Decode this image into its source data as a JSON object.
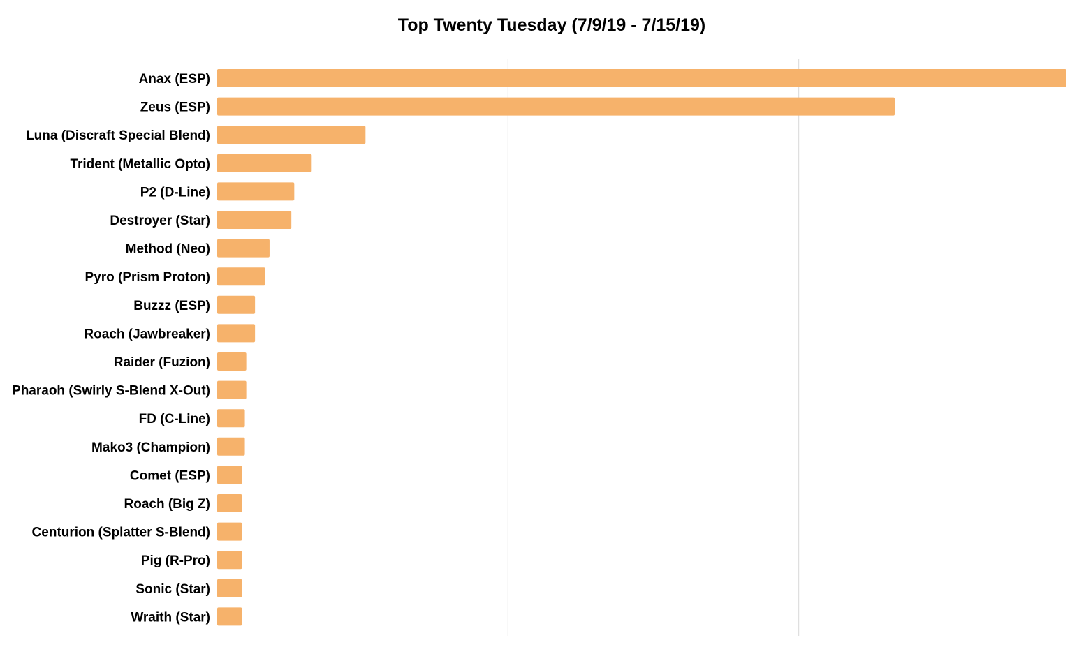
{
  "chart_data": {
    "type": "bar",
    "orientation": "horizontal",
    "title": "Top Twenty Tuesday (7/9/19 - 7/15/19)",
    "xlabel": "",
    "ylabel": "",
    "categories": [
      "Anax (ESP)",
      "Zeus (ESP)",
      "Luna (Discraft Special Blend)",
      "Trident (Metallic Opto)",
      "P2 (D-Line)",
      "Destroyer (Star)",
      "Method (Neo)",
      "Pyro (Prism Proton)",
      "Buzzz (ESP)",
      "Roach (Jawbreaker)",
      "Raider (Fuzion)",
      "Pharaoh (Swirly S-Blend X-Out)",
      "FD (C-Line)",
      "Mako3 (Champion)",
      "Comet (ESP)",
      "Roach (Big Z)",
      "Centurion (Splatter S-Blend)",
      "Pig (R-Pro)",
      "Sonic (Star)",
      "Wraith (Star)"
    ],
    "values": [
      292,
      233,
      51,
      32.5,
      26.5,
      25.5,
      18,
      16.5,
      13,
      13,
      10,
      10,
      9.5,
      9.5,
      8.5,
      8.5,
      8.5,
      8.5,
      8.5,
      8.5
    ],
    "xlim": [
      0,
      300
    ],
    "gridlines": [
      100,
      200
    ],
    "x_tick_labels_shown": false,
    "grid": true,
    "legend": "none",
    "colors": {
      "bar": "#f6b26b",
      "grid": "#d9d9d9",
      "axis": "#333333"
    }
  }
}
